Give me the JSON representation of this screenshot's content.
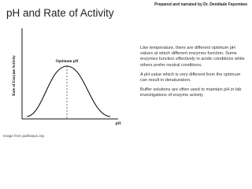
{
  "header": {
    "title": "pH and Rate of Activity",
    "credit": "Prepared and narrated by Dr. Demilade Fayemiwo"
  },
  "diagram": {
    "peak_label": "Optimum pH",
    "y_axis_label": "Rate of Enzyme Activity",
    "x_axis_label": "pH",
    "source": "Image from pathways.org"
  },
  "body": {
    "paragraphs": [
      "Like temperature, there are different optimum pH values at which different enzymes function. Some enzymes function effectively in acidic conditions while others prefer neutral conditions.",
      "A pH value which is very different from the optimum can result in denaturation.",
      "Buffer solutions are often used to maintain pH in lab investigations of enzyme activity"
    ]
  }
}
